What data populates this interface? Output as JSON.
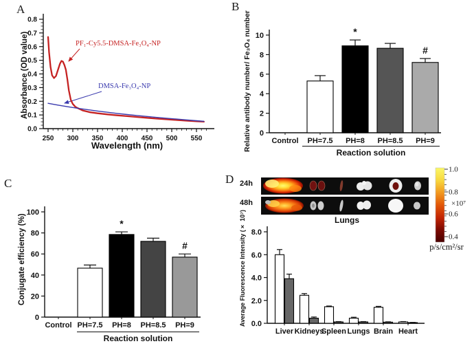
{
  "panels": {
    "a": {
      "label": "A"
    },
    "b": {
      "label": "B"
    },
    "c": {
      "label": "C"
    },
    "d": {
      "label": "D",
      "time_labels": [
        "24h",
        "48h"
      ],
      "strip_caption": "Lungs",
      "organs": [
        "liver",
        "kidneys",
        "spleen",
        "lungs",
        "brain",
        "heart"
      ],
      "colorbar": {
        "tick_labels": [
          "1.0",
          "0.8",
          "0.6",
          "0.4"
        ],
        "multiplier": "×10⁷",
        "unit": "p/s/cm²/sr",
        "colors": [
          "#fbf868",
          "#f8d73e",
          "#f29a20",
          "#e25708",
          "#c22404",
          "#7e0a02",
          "#4a0000"
        ]
      }
    }
  },
  "chart_data": [
    {
      "id": "A",
      "type": "line",
      "xlabel": "Wavelength (nm)",
      "ylabel": "Absorbance (OD value)",
      "xlim": [
        250,
        570
      ],
      "ylim": [
        0,
        0.8
      ],
      "xticks": [
        250,
        300,
        350,
        400,
        450,
        500,
        550
      ],
      "yticks": [
        0,
        0.1,
        0.2,
        0.3,
        0.4,
        0.5,
        0.6,
        0.7,
        0.8
      ],
      "series": [
        {
          "name": "PF₁-Cy5.5-DMSA-Fe₃O₄-NP",
          "color": "#c52222",
          "x": [
            250,
            252,
            255,
            258,
            262,
            266,
            270,
            274,
            277,
            280,
            283,
            286,
            289,
            292,
            296,
            300,
            305,
            310,
            320,
            335,
            350,
            370,
            390,
            410,
            430,
            450,
            470,
            490,
            510,
            530,
            550,
            565
          ],
          "y": [
            0.67,
            0.56,
            0.45,
            0.39,
            0.37,
            0.385,
            0.43,
            0.475,
            0.495,
            0.49,
            0.465,
            0.43,
            0.36,
            0.28,
            0.21,
            0.18,
            0.16,
            0.15,
            0.133,
            0.12,
            0.112,
            0.104,
            0.097,
            0.091,
            0.085,
            0.079,
            0.073,
            0.068,
            0.063,
            0.058,
            0.054,
            0.051
          ]
        },
        {
          "name": "DMSA-Fe₃O₄-NP",
          "color": "#3a3aae",
          "x": [
            250,
            270,
            290,
            310,
            330,
            350,
            370,
            390,
            410,
            430,
            450,
            470,
            490,
            510,
            530,
            550,
            565
          ],
          "y": [
            0.185,
            0.172,
            0.16,
            0.149,
            0.139,
            0.129,
            0.12,
            0.111,
            0.103,
            0.096,
            0.089,
            0.082,
            0.076,
            0.07,
            0.064,
            0.058,
            0.054
          ]
        }
      ]
    },
    {
      "id": "B",
      "type": "bar",
      "xlabel": "Reaction solution",
      "ylabel": "Relative antibody number/ Fe₃O₄ number",
      "categories": [
        "Control",
        "PH=7.5",
        "PH=8",
        "PH=8.5",
        "PH=9"
      ],
      "values": [
        0,
        5.3,
        8.9,
        8.65,
        7.2
      ],
      "errors": [
        0,
        0.55,
        0.6,
        0.5,
        0.4
      ],
      "bar_colors": [
        "#ffffff",
        "#ffffff",
        "#000000",
        "#555555",
        "#aaaaaa"
      ],
      "sig": [
        "",
        "",
        "*",
        "",
        "#"
      ],
      "ylim": [
        0,
        10
      ],
      "yticks": [
        0,
        2,
        4,
        6,
        8,
        10
      ]
    },
    {
      "id": "C",
      "type": "bar",
      "xlabel": "Reaction solution",
      "ylabel": "Conjugate efficiency (%)",
      "categories": [
        "Control",
        "PH=7.5",
        "PH=8",
        "PH=8.5",
        "PH=9"
      ],
      "values": [
        0,
        46.5,
        78.5,
        72,
        57
      ],
      "errors": [
        0,
        3,
        2.5,
        3,
        3
      ],
      "bar_colors": [
        "#ffffff",
        "#ffffff",
        "#000000",
        "#444444",
        "#999999"
      ],
      "sig": [
        "",
        "",
        "*",
        "",
        "#"
      ],
      "ylim": [
        0,
        100
      ],
      "yticks": [
        0,
        20,
        40,
        60,
        80,
        100
      ]
    },
    {
      "id": "D",
      "type": "bar",
      "xlabel": "",
      "ylabel": "Average Fluorescence Intensity (× 10⁷)",
      "categories": [
        "Liver",
        "Kidneys",
        "Spleen",
        "Lungs",
        "Brain",
        "Heart"
      ],
      "series": [
        {
          "name": "24h",
          "color": "#ffffff",
          "values": [
            6.0,
            2.45,
            1.45,
            0.45,
            1.4,
            0.12
          ],
          "errors": [
            0.45,
            0.15,
            0.06,
            0.08,
            0.08,
            0.03
          ]
        },
        {
          "name": "48h",
          "color": "#666666",
          "values": [
            3.9,
            0.45,
            0.12,
            0.12,
            0.1,
            0.06
          ],
          "errors": [
            0.4,
            0.1,
            0.03,
            0.03,
            0.03,
            0.02
          ]
        }
      ],
      "ylim": [
        0,
        8
      ],
      "yticks": [
        "0.0",
        "2.0",
        "4.0",
        "6.0",
        "8.0"
      ]
    }
  ]
}
